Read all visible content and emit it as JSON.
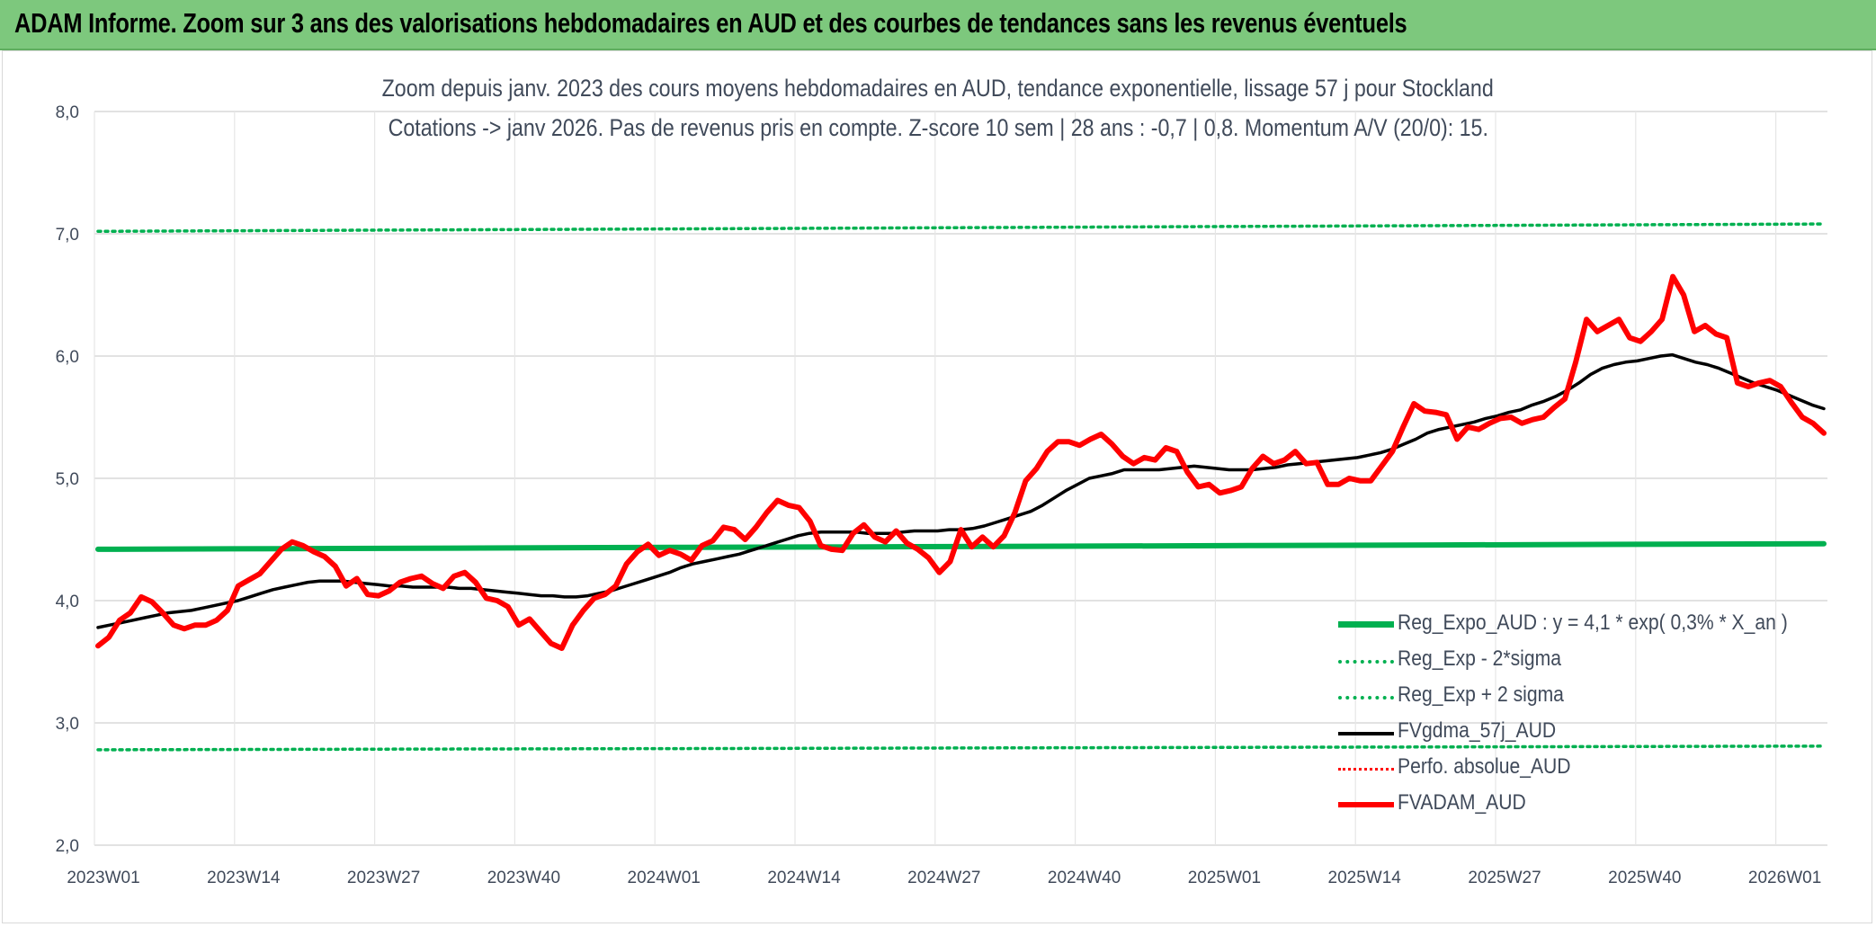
{
  "banner": {
    "title": "ADAM Informe. Zoom sur 3 ans des valorisations hebdomadaires en AUD et des courbes de tendances sans les revenus éventuels"
  },
  "chart_data": {
    "type": "line",
    "title": "Zoom depuis janv. 2023 des cours moyens hebdomadaires en AUD, tendance exponentielle, lissage 57 j pour Stockland",
    "subtitle": "Cotations -> janv 2026. Pas de revenus pris en compte. Z-score 10 sem | 28 ans : -0,7 | 0,8. Momentum A/V (20/0): 15.",
    "xlabel": "",
    "ylabel": "",
    "ylim": [
      2.0,
      8.0
    ],
    "ytick_labels": [
      "2,0",
      "3,0",
      "4,0",
      "5,0",
      "6,0",
      "7,0",
      "8,0"
    ],
    "xtick_labels": [
      "2023W01",
      "2023W14",
      "2023W27",
      "2023W40",
      "2024W01",
      "2024W14",
      "2024W27",
      "2024W40",
      "2025W01",
      "2025W14",
      "2025W27",
      "2025W40",
      "2026W01"
    ],
    "x_start": "2023W01",
    "grid": true,
    "legend_position": "bottom-right",
    "series": [
      {
        "name": "Reg_Expo_AUD : y = 4,1 * exp( 0,3% *  X_an )",
        "color": "#00b050",
        "style": "solid-thick",
        "values": [
          4.42,
          4.425,
          4.43,
          4.435,
          4.44,
          4.445,
          4.45,
          4.455,
          4.46,
          4.465
        ]
      },
      {
        "name": "Reg_Exp - 2*sigma",
        "color": "#00b050",
        "style": "dotted",
        "values": [
          2.78,
          2.785,
          2.79,
          2.795,
          2.8,
          2.805,
          2.81
        ]
      },
      {
        "name": "Reg_Exp + 2 sigma",
        "color": "#00b050",
        "style": "dotted",
        "values": [
          7.02,
          7.03,
          7.04,
          7.05,
          7.06,
          7.07,
          7.08
        ]
      },
      {
        "name": "FVgdma_57j_AUD",
        "color": "#000000",
        "style": "solid",
        "values": [
          3.78,
          3.8,
          3.82,
          3.84,
          3.86,
          3.88,
          3.9,
          3.91,
          3.92,
          3.94,
          3.96,
          3.98,
          4.0,
          4.03,
          4.06,
          4.09,
          4.11,
          4.13,
          4.15,
          4.16,
          4.16,
          4.16,
          4.15,
          4.14,
          4.13,
          4.12,
          4.12,
          4.11,
          4.11,
          4.11,
          4.11,
          4.1,
          4.1,
          4.09,
          4.08,
          4.07,
          4.06,
          4.05,
          4.04,
          4.04,
          4.03,
          4.03,
          4.04,
          4.06,
          4.08,
          4.11,
          4.14,
          4.17,
          4.2,
          4.23,
          4.27,
          4.3,
          4.32,
          4.34,
          4.36,
          4.38,
          4.41,
          4.44,
          4.47,
          4.5,
          4.53,
          4.55,
          4.56,
          4.56,
          4.56,
          4.56,
          4.55,
          4.55,
          4.55,
          4.56,
          4.57,
          4.57,
          4.57,
          4.58,
          4.58,
          4.59,
          4.61,
          4.64,
          4.67,
          4.7,
          4.73,
          4.78,
          4.84,
          4.9,
          4.95,
          5.0,
          5.02,
          5.04,
          5.07,
          5.07,
          5.07,
          5.07,
          5.08,
          5.09,
          5.1,
          5.09,
          5.08,
          5.07,
          5.07,
          5.07,
          5.08,
          5.09,
          5.11,
          5.12,
          5.13,
          5.14,
          5.15,
          5.16,
          5.17,
          5.19,
          5.21,
          5.24,
          5.28,
          5.32,
          5.37,
          5.4,
          5.42,
          5.44,
          5.46,
          5.49,
          5.51,
          5.54,
          5.56,
          5.6,
          5.63,
          5.67,
          5.72,
          5.78,
          5.85,
          5.9,
          5.93,
          5.95,
          5.96,
          5.98,
          6.0,
          6.01,
          5.98,
          5.95,
          5.93,
          5.9,
          5.86,
          5.82,
          5.78,
          5.75,
          5.72,
          5.68,
          5.64,
          5.6,
          5.57
        ]
      },
      {
        "name": "Perfo. absolue_AUD",
        "color": "#ff0000",
        "style": "dotted",
        "values": []
      },
      {
        "name": "FVADAM_AUD",
        "color": "#ff0000",
        "style": "solid-thick",
        "values": [
          3.63,
          3.7,
          3.84,
          3.9,
          4.03,
          3.99,
          3.9,
          3.8,
          3.77,
          3.8,
          3.8,
          3.84,
          3.92,
          4.12,
          4.17,
          4.22,
          4.32,
          4.42,
          4.48,
          4.45,
          4.4,
          4.36,
          4.28,
          4.12,
          4.18,
          4.05,
          4.04,
          4.08,
          4.15,
          4.18,
          4.2,
          4.14,
          4.1,
          4.2,
          4.23,
          4.15,
          4.02,
          4.0,
          3.95,
          3.8,
          3.85,
          3.75,
          3.65,
          3.61,
          3.8,
          3.92,
          4.02,
          4.05,
          4.12,
          4.3,
          4.4,
          4.46,
          4.37,
          4.41,
          4.38,
          4.33,
          4.45,
          4.49,
          4.6,
          4.58,
          4.5,
          4.6,
          4.72,
          4.82,
          4.78,
          4.76,
          4.65,
          4.45,
          4.42,
          4.41,
          4.55,
          4.62,
          4.52,
          4.48,
          4.57,
          4.47,
          4.42,
          4.35,
          4.23,
          4.32,
          4.58,
          4.44,
          4.52,
          4.44,
          4.53,
          4.72,
          4.98,
          5.08,
          5.22,
          5.3,
          5.3,
          5.27,
          5.32,
          5.36,
          5.28,
          5.18,
          5.12,
          5.17,
          5.15,
          5.25,
          5.22,
          5.05,
          4.93,
          4.95,
          4.88,
          4.9,
          4.93,
          5.08,
          5.18,
          5.12,
          5.15,
          5.22,
          5.12,
          5.13,
          4.95,
          4.95,
          5.0,
          4.98,
          4.98,
          5.1,
          5.22,
          5.42,
          5.61,
          5.55,
          5.54,
          5.52,
          5.32,
          5.42,
          5.4,
          5.45,
          5.49,
          5.5,
          5.45,
          5.48,
          5.5,
          5.58,
          5.65,
          5.95,
          6.3,
          6.2,
          6.25,
          6.3,
          6.15,
          6.12,
          6.2,
          6.3,
          6.65,
          6.5,
          6.2,
          6.25,
          6.18,
          6.15,
          5.78,
          5.75,
          5.78,
          5.8,
          5.75,
          5.62,
          5.5,
          5.45,
          5.37
        ]
      }
    ]
  },
  "colors": {
    "banner_bg": "#7dc87d",
    "green": "#00b050",
    "black": "#000000",
    "red": "#ff0000",
    "text": "#404a5a",
    "grid": "#d9d9d9"
  }
}
